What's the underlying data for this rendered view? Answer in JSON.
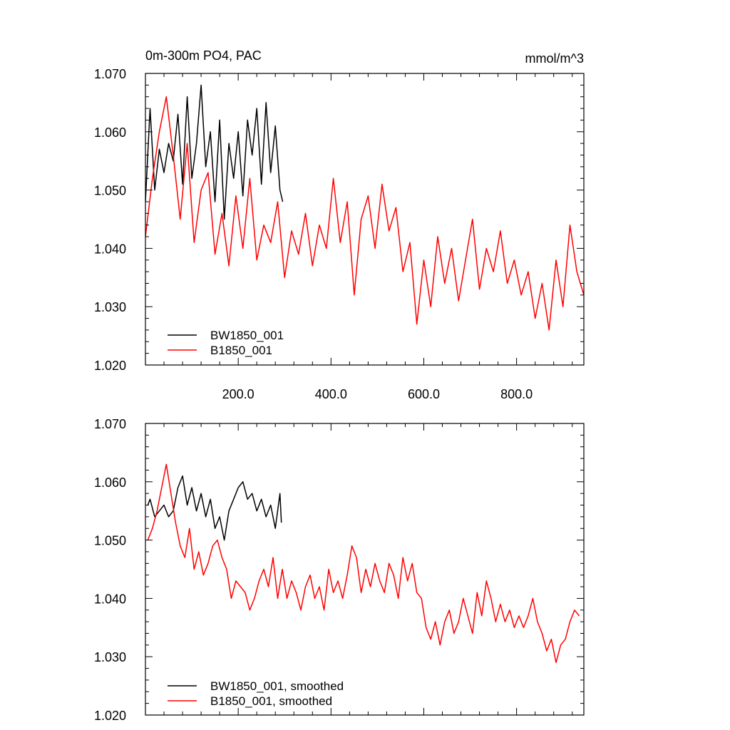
{
  "colors": {
    "bw": "#000000",
    "b": "#ff0000"
  },
  "chart_data": [
    {
      "type": "line",
      "title": "0m-300m PO4, PAC",
      "title_right": "mmol/m^3",
      "xlabel": "",
      "ylabel": "",
      "xlim": [
        0,
        945
      ],
      "ylim": [
        1.02,
        1.07
      ],
      "x_ticks": [
        200,
        400,
        600,
        800
      ],
      "x_tick_labels": [
        "200.0",
        "400.0",
        "600.0",
        "800.0"
      ],
      "y_ticks": [
        1.02,
        1.03,
        1.04,
        1.05,
        1.06,
        1.07
      ],
      "y_tick_labels": [
        "1.020",
        "1.030",
        "1.040",
        "1.050",
        "1.060",
        "1.070"
      ],
      "grid": false,
      "legend_position": "bottom-left",
      "series": [
        {
          "name": "BW1850_001",
          "color_key": "bw",
          "x": [
            0,
            10,
            20,
            30,
            40,
            50,
            60,
            70,
            80,
            90,
            100,
            110,
            120,
            130,
            140,
            150,
            160,
            170,
            180,
            190,
            200,
            210,
            220,
            230,
            240,
            250,
            260,
            270,
            280,
            290,
            296
          ],
          "y": [
            1.048,
            1.064,
            1.05,
            1.057,
            1.053,
            1.058,
            1.055,
            1.063,
            1.051,
            1.066,
            1.052,
            1.058,
            1.068,
            1.054,
            1.06,
            1.048,
            1.062,
            1.045,
            1.058,
            1.052,
            1.06,
            1.049,
            1.062,
            1.056,
            1.064,
            1.051,
            1.065,
            1.053,
            1.061,
            1.05,
            1.048
          ]
        },
        {
          "name": "B1850_001",
          "color_key": "b",
          "x": [
            0,
            15,
            30,
            45,
            60,
            75,
            90,
            105,
            120,
            135,
            150,
            165,
            180,
            195,
            210,
            225,
            240,
            255,
            270,
            285,
            300,
            315,
            330,
            345,
            360,
            375,
            390,
            405,
            420,
            435,
            450,
            465,
            480,
            495,
            510,
            525,
            540,
            555,
            570,
            585,
            600,
            615,
            630,
            645,
            660,
            675,
            690,
            705,
            720,
            735,
            750,
            765,
            780,
            795,
            810,
            825,
            840,
            855,
            870,
            885,
            900,
            915,
            930,
            945
          ],
          "y": [
            1.042,
            1.052,
            1.06,
            1.066,
            1.056,
            1.045,
            1.058,
            1.041,
            1.05,
            1.053,
            1.039,
            1.046,
            1.037,
            1.049,
            1.04,
            1.052,
            1.038,
            1.044,
            1.041,
            1.048,
            1.035,
            1.043,
            1.039,
            1.046,
            1.037,
            1.044,
            1.04,
            1.052,
            1.041,
            1.048,
            1.032,
            1.045,
            1.049,
            1.04,
            1.051,
            1.043,
            1.047,
            1.036,
            1.041,
            1.027,
            1.038,
            1.03,
            1.042,
            1.034,
            1.04,
            1.031,
            1.038,
            1.045,
            1.033,
            1.04,
            1.036,
            1.043,
            1.034,
            1.038,
            1.032,
            1.036,
            1.028,
            1.034,
            1.026,
            1.038,
            1.03,
            1.044,
            1.036,
            1.032
          ]
        }
      ]
    },
    {
      "type": "line",
      "title": "",
      "xlabel": "",
      "ylabel": "",
      "xlim": [
        0,
        945
      ],
      "ylim": [
        1.02,
        1.07
      ],
      "x_ticks": [
        200,
        400,
        600,
        800
      ],
      "x_tick_labels": [],
      "y_ticks": [
        1.02,
        1.03,
        1.04,
        1.05,
        1.06,
        1.07
      ],
      "y_tick_labels": [
        "1.020",
        "1.030",
        "1.040",
        "1.050",
        "1.060",
        "1.070"
      ],
      "grid": false,
      "legend_position": "bottom-left",
      "series": [
        {
          "name": "BW1850_001, smoothed",
          "color_key": "bw",
          "x": [
            5,
            10,
            20,
            30,
            40,
            50,
            60,
            70,
            80,
            90,
            100,
            110,
            120,
            130,
            140,
            150,
            160,
            170,
            180,
            190,
            200,
            210,
            220,
            230,
            240,
            250,
            260,
            270,
            280,
            290,
            293
          ],
          "y": [
            1.056,
            1.057,
            1.054,
            1.055,
            1.056,
            1.054,
            1.055,
            1.059,
            1.061,
            1.056,
            1.059,
            1.055,
            1.058,
            1.054,
            1.057,
            1.052,
            1.054,
            1.05,
            1.055,
            1.057,
            1.059,
            1.06,
            1.057,
            1.058,
            1.055,
            1.057,
            1.054,
            1.056,
            1.052,
            1.058,
            1.053
          ]
        },
        {
          "name": "B1850_001, smoothed",
          "color_key": "b",
          "x": [
            5,
            15,
            25,
            35,
            45,
            55,
            65,
            75,
            85,
            95,
            105,
            115,
            125,
            135,
            145,
            155,
            165,
            175,
            185,
            195,
            205,
            215,
            225,
            235,
            245,
            255,
            265,
            275,
            285,
            295,
            305,
            315,
            325,
            335,
            345,
            355,
            365,
            375,
            385,
            395,
            405,
            415,
            425,
            435,
            445,
            455,
            465,
            475,
            485,
            495,
            505,
            515,
            525,
            535,
            545,
            555,
            565,
            575,
            585,
            595,
            605,
            615,
            625,
            635,
            645,
            655,
            665,
            675,
            685,
            695,
            705,
            715,
            725,
            735,
            745,
            755,
            765,
            775,
            785,
            795,
            805,
            815,
            825,
            835,
            845,
            855,
            865,
            875,
            885,
            895,
            905,
            915,
            925,
            935
          ],
          "y": [
            1.05,
            1.052,
            1.055,
            1.059,
            1.063,
            1.058,
            1.053,
            1.049,
            1.047,
            1.052,
            1.045,
            1.048,
            1.044,
            1.046,
            1.049,
            1.05,
            1.047,
            1.045,
            1.04,
            1.043,
            1.042,
            1.041,
            1.038,
            1.04,
            1.043,
            1.045,
            1.042,
            1.047,
            1.04,
            1.045,
            1.04,
            1.043,
            1.041,
            1.038,
            1.042,
            1.044,
            1.04,
            1.042,
            1.038,
            1.045,
            1.041,
            1.043,
            1.04,
            1.044,
            1.049,
            1.047,
            1.041,
            1.045,
            1.042,
            1.046,
            1.043,
            1.041,
            1.046,
            1.044,
            1.04,
            1.047,
            1.043,
            1.046,
            1.041,
            1.04,
            1.035,
            1.033,
            1.036,
            1.032,
            1.036,
            1.038,
            1.034,
            1.036,
            1.04,
            1.037,
            1.034,
            1.041,
            1.037,
            1.043,
            1.04,
            1.036,
            1.039,
            1.036,
            1.038,
            1.035,
            1.037,
            1.035,
            1.037,
            1.04,
            1.036,
            1.034,
            1.031,
            1.033,
            1.029,
            1.032,
            1.033,
            1.036,
            1.038,
            1.037
          ]
        }
      ]
    }
  ]
}
